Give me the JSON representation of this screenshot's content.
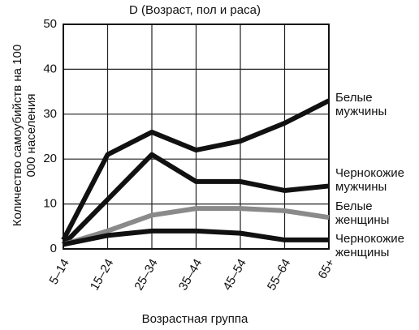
{
  "chart_data": {
    "type": "line",
    "title": "D (Возраст, пол и раса)",
    "ylabel": "Количество самоубийств на 100 000 населения",
    "xlabel": "Возрастная группа",
    "categories": [
      "5–14",
      "15–24",
      "25–34",
      "35–44",
      "45–54",
      "55–64",
      "65+"
    ],
    "series": [
      {
        "name": "Белые мужчины",
        "color": "#111111",
        "values": [
          2,
          21,
          26,
          22,
          24,
          28,
          33
        ]
      },
      {
        "name": "Чернокожие мужчины",
        "color": "#111111",
        "values": [
          1,
          11,
          21,
          15,
          15,
          13,
          14
        ]
      },
      {
        "name": "Белые женщины",
        "color": "#8a8a8a",
        "values": [
          1,
          4,
          7.5,
          9,
          9,
          8.5,
          7
        ]
      },
      {
        "name": "Чернокожие женщины",
        "color": "#111111",
        "values": [
          1,
          3,
          4,
          4,
          3.5,
          2,
          2
        ]
      }
    ],
    "ylim": [
      0,
      50
    ],
    "yticks": [
      0,
      10,
      20,
      30,
      40,
      50
    ],
    "grid": true
  }
}
